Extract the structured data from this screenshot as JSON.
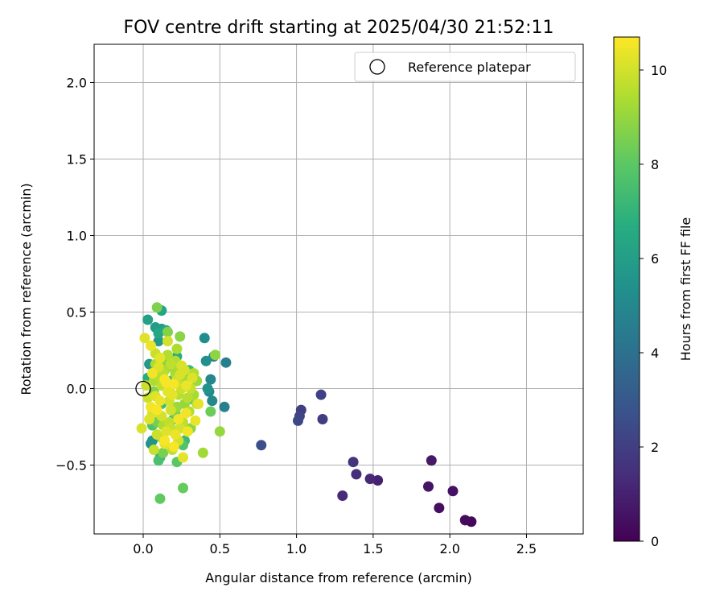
{
  "chart_data": {
    "type": "scatter",
    "title": "FOV centre drift starting at 2025/04/30 21:52:11",
    "xlabel": "Angular distance from reference (arcmin)",
    "ylabel": "Rotation from reference (arcmin)",
    "xlim": [
      -0.32,
      2.87
    ],
    "ylim": [
      -0.95,
      2.25
    ],
    "xticks": [
      0.0,
      0.5,
      1.0,
      1.5,
      2.0,
      2.5
    ],
    "yticks": [
      -0.5,
      0.0,
      0.5,
      1.0,
      1.5,
      2.0
    ],
    "grid": true,
    "legend": {
      "placement": "top-right",
      "label": "Reference platepar",
      "marker": "open-circle"
    },
    "reference_point": {
      "x": 0.0,
      "y": 0.0
    },
    "colorbar": {
      "label": "Hours from first FF file",
      "colormap": "viridis",
      "range": [
        0,
        10.7
      ],
      "ticks": [
        0,
        2,
        4,
        6,
        8,
        10
      ]
    },
    "points": [
      {
        "x": 2.14,
        "y": -0.87,
        "c": 0.2
      },
      {
        "x": 2.1,
        "y": -0.86,
        "c": 0.3
      },
      {
        "x": 1.93,
        "y": -0.78,
        "c": 0.4
      },
      {
        "x": 2.02,
        "y": -0.67,
        "c": 0.5
      },
      {
        "x": 1.86,
        "y": -0.64,
        "c": 0.6
      },
      {
        "x": 1.88,
        "y": -0.47,
        "c": 0.7
      },
      {
        "x": 1.53,
        "y": -0.6,
        "c": 1.0
      },
      {
        "x": 1.48,
        "y": -0.59,
        "c": 1.2
      },
      {
        "x": 1.39,
        "y": -0.56,
        "c": 1.4
      },
      {
        "x": 1.3,
        "y": -0.7,
        "c": 1.3
      },
      {
        "x": 1.37,
        "y": -0.48,
        "c": 1.6
      },
      {
        "x": 1.17,
        "y": -0.2,
        "c": 1.9
      },
      {
        "x": 1.16,
        "y": -0.04,
        "c": 2.1
      },
      {
        "x": 1.03,
        "y": -0.14,
        "c": 2.0
      },
      {
        "x": 1.02,
        "y": -0.18,
        "c": 2.2
      },
      {
        "x": 1.01,
        "y": -0.21,
        "c": 2.3
      },
      {
        "x": 0.77,
        "y": -0.37,
        "c": 2.6
      },
      {
        "x": 0.54,
        "y": 0.17,
        "c": 4.6
      },
      {
        "x": 0.53,
        "y": -0.12,
        "c": 4.7
      },
      {
        "x": 0.46,
        "y": 0.21,
        "c": 4.8
      },
      {
        "x": 0.44,
        "y": 0.06,
        "c": 4.9
      },
      {
        "x": 0.45,
        "y": -0.08,
        "c": 5.0
      },
      {
        "x": 0.43,
        "y": -0.02,
        "c": 5.1
      },
      {
        "x": 0.4,
        "y": 0.33,
        "c": 5.2
      },
      {
        "x": 0.41,
        "y": 0.18,
        "c": 5.3
      },
      {
        "x": 0.42,
        "y": 0.0,
        "c": 5.5
      },
      {
        "x": 0.05,
        "y": -0.36,
        "c": 5.4
      },
      {
        "x": 0.06,
        "y": -0.34,
        "c": 5.6
      },
      {
        "x": 0.04,
        "y": 0.16,
        "c": 5.7
      },
      {
        "x": 0.1,
        "y": 0.31,
        "c": 5.8
      },
      {
        "x": 0.08,
        "y": 0.4,
        "c": 5.9
      },
      {
        "x": 0.12,
        "y": 0.39,
        "c": 6.0
      },
      {
        "x": 0.03,
        "y": 0.45,
        "c": 6.1
      },
      {
        "x": 0.12,
        "y": 0.51,
        "c": 6.3
      },
      {
        "x": 0.1,
        "y": 0.36,
        "c": 6.4
      },
      {
        "x": 0.15,
        "y": 0.38,
        "c": 6.5
      },
      {
        "x": 0.03,
        "y": 0.07,
        "c": 6.6
      },
      {
        "x": 0.22,
        "y": 0.21,
        "c": 6.7
      },
      {
        "x": 0.25,
        "y": -0.36,
        "c": 6.8
      },
      {
        "x": 0.2,
        "y": -0.2,
        "c": 6.9
      },
      {
        "x": 0.11,
        "y": -0.45,
        "c": 7.0
      },
      {
        "x": 0.27,
        "y": -0.34,
        "c": 7.2
      },
      {
        "x": 0.3,
        "y": 0.12,
        "c": 7.3
      },
      {
        "x": 0.12,
        "y": -0.1,
        "c": 7.4
      },
      {
        "x": 0.18,
        "y": 0.05,
        "c": 7.5
      },
      {
        "x": 0.1,
        "y": -0.47,
        "c": 7.6
      },
      {
        "x": 0.06,
        "y": -0.24,
        "c": 7.7
      },
      {
        "x": 0.26,
        "y": -0.37,
        "c": 7.8
      },
      {
        "x": 0.32,
        "y": -0.07,
        "c": 7.9
      },
      {
        "x": 0.22,
        "y": -0.48,
        "c": 8.0
      },
      {
        "x": 0.11,
        "y": -0.72,
        "c": 8.1
      },
      {
        "x": 0.26,
        "y": -0.65,
        "c": 8.2
      },
      {
        "x": 0.44,
        "y": -0.15,
        "c": 8.3
      },
      {
        "x": 0.09,
        "y": 0.53,
        "c": 8.6
      },
      {
        "x": 0.16,
        "y": 0.37,
        "c": 8.7
      },
      {
        "x": 0.24,
        "y": 0.34,
        "c": 8.8
      },
      {
        "x": 0.47,
        "y": 0.22,
        "c": 8.9
      },
      {
        "x": 0.5,
        "y": -0.28,
        "c": 9.0
      },
      {
        "x": 0.39,
        "y": -0.42,
        "c": 9.2
      },
      {
        "x": 0.22,
        "y": 0.26,
        "c": 9.4
      },
      {
        "x": 0.33,
        "y": 0.1,
        "c": 9.5
      },
      {
        "x": 0.35,
        "y": -0.1,
        "c": 9.6
      },
      {
        "x": 0.18,
        "y": 0.16,
        "c": 9.7
      },
      {
        "x": 0.08,
        "y": 0.23,
        "c": 9.8
      },
      {
        "x": 0.16,
        "y": 0.31,
        "c": 10.0
      },
      {
        "x": -0.01,
        "y": -0.26,
        "c": 10.1
      },
      {
        "x": 0.01,
        "y": 0.33,
        "c": 10.2
      },
      {
        "x": 0.26,
        "y": -0.45,
        "c": 10.3
      },
      {
        "x": 0.34,
        "y": -0.21,
        "c": 10.4
      },
      {
        "x": 0.14,
        "y": -0.34,
        "c": 10.6
      },
      {
        "x": 0.02,
        "y": 0.02,
        "c": 9.9
      },
      {
        "x": 0.05,
        "y": -0.12,
        "c": 10.5
      },
      {
        "x": 0.08,
        "y": -0.05,
        "c": 10.2
      },
      {
        "x": 0.1,
        "y": 0.08,
        "c": 9.6
      },
      {
        "x": 0.12,
        "y": -0.18,
        "c": 10.0
      },
      {
        "x": 0.14,
        "y": 0.12,
        "c": 9.3
      },
      {
        "x": 0.16,
        "y": -0.02,
        "c": 10.3
      },
      {
        "x": 0.18,
        "y": -0.26,
        "c": 9.8
      },
      {
        "x": 0.2,
        "y": 0.03,
        "c": 10.6
      },
      {
        "x": 0.22,
        "y": -0.12,
        "c": 9.1
      },
      {
        "x": 0.24,
        "y": 0.09,
        "c": 10.1
      },
      {
        "x": 0.26,
        "y": -0.22,
        "c": 9.7
      },
      {
        "x": 0.28,
        "y": 0.02,
        "c": 10.4
      },
      {
        "x": 0.3,
        "y": -0.15,
        "c": 9.5
      },
      {
        "x": 0.32,
        "y": 0.07,
        "c": 10.2
      },
      {
        "x": 0.06,
        "y": 0.1,
        "c": 10.5
      },
      {
        "x": 0.09,
        "y": -0.3,
        "c": 9.9
      },
      {
        "x": 0.11,
        "y": 0.2,
        "c": 10.3
      },
      {
        "x": 0.13,
        "y": -0.24,
        "c": 9.4
      },
      {
        "x": 0.15,
        "y": 0.04,
        "c": 10.6
      },
      {
        "x": 0.17,
        "y": -0.08,
        "c": 10.0
      },
      {
        "x": 0.19,
        "y": 0.14,
        "c": 9.2
      },
      {
        "x": 0.21,
        "y": -0.3,
        "c": 10.4
      },
      {
        "x": 0.23,
        "y": -0.04,
        "c": 9.6
      },
      {
        "x": 0.25,
        "y": 0.15,
        "c": 10.1
      },
      {
        "x": 0.27,
        "y": -0.1,
        "c": 9.0
      },
      {
        "x": 0.29,
        "y": -0.28,
        "c": 10.5
      },
      {
        "x": 0.31,
        "y": 0.0,
        "c": 9.8
      },
      {
        "x": 0.04,
        "y": -0.2,
        "c": 10.2
      },
      {
        "x": 0.07,
        "y": 0.05,
        "c": 9.4
      },
      {
        "x": 0.09,
        "y": -0.14,
        "c": 10.6
      },
      {
        "x": 0.12,
        "y": 0.02,
        "c": 9.7
      },
      {
        "x": 0.14,
        "y": -0.36,
        "c": 10.3
      },
      {
        "x": 0.16,
        "y": 0.22,
        "c": 9.5
      },
      {
        "x": 0.18,
        "y": -0.14,
        "c": 10.0
      },
      {
        "x": 0.21,
        "y": 0.1,
        "c": 9.3
      },
      {
        "x": 0.23,
        "y": -0.2,
        "c": 10.5
      },
      {
        "x": 0.25,
        "y": 0.0,
        "c": 9.9
      },
      {
        "x": 0.27,
        "y": 0.12,
        "c": 10.1
      },
      {
        "x": 0.29,
        "y": -0.06,
        "c": 9.6
      },
      {
        "x": 0.05,
        "y": 0.28,
        "c": 10.4
      },
      {
        "x": 0.07,
        "y": -0.4,
        "c": 9.8
      },
      {
        "x": 0.1,
        "y": 0.14,
        "c": 10.2
      },
      {
        "x": 0.12,
        "y": -0.32,
        "c": 9.1
      },
      {
        "x": 0.14,
        "y": 0.06,
        "c": 10.6
      },
      {
        "x": 0.17,
        "y": -0.22,
        "c": 9.7
      },
      {
        "x": 0.19,
        "y": -0.04,
        "c": 10.3
      },
      {
        "x": 0.21,
        "y": 0.18,
        "c": 9.5
      },
      {
        "x": 0.23,
        "y": -0.34,
        "c": 10.0
      },
      {
        "x": 0.26,
        "y": 0.06,
        "c": 9.2
      },
      {
        "x": 0.28,
        "y": -0.16,
        "c": 10.5
      },
      {
        "x": 0.03,
        "y": -0.06,
        "c": 9.9
      },
      {
        "x": 0.06,
        "y": -0.16,
        "c": 10.1
      },
      {
        "x": 0.08,
        "y": 0.16,
        "c": 9.4
      },
      {
        "x": 0.11,
        "y": -0.08,
        "c": 10.4
      },
      {
        "x": 0.13,
        "y": 0.1,
        "c": 9.6
      },
      {
        "x": 0.15,
        "y": -0.28,
        "c": 10.2
      },
      {
        "x": 0.17,
        "y": 0.0,
        "c": 9.0
      },
      {
        "x": 0.2,
        "y": -0.38,
        "c": 10.6
      },
      {
        "x": 0.22,
        "y": 0.06,
        "c": 9.8
      },
      {
        "x": 0.24,
        "y": -0.26,
        "c": 10.0
      },
      {
        "x": 0.19,
        "y": -0.4,
        "c": 9.7
      },
      {
        "x": 0.33,
        "y": -0.04,
        "c": 9.3
      },
      {
        "x": 0.36,
        "y": -0.1,
        "c": 10.3
      },
      {
        "x": 0.35,
        "y": 0.05,
        "c": 9.1
      },
      {
        "x": 0.13,
        "y": -0.42,
        "c": 8.5
      },
      {
        "x": 0.09,
        "y": -0.22,
        "c": 8.4
      },
      {
        "x": 0.21,
        "y": -0.16,
        "c": 8.6
      },
      {
        "x": 0.28,
        "y": 0.1,
        "c": 8.4
      },
      {
        "x": 0.14,
        "y": 0.16,
        "c": 8.8
      },
      {
        "x": 0.07,
        "y": -0.02,
        "c": 8.7
      },
      {
        "x": 0.31,
        "y": -0.26,
        "c": 8.9
      }
    ]
  }
}
